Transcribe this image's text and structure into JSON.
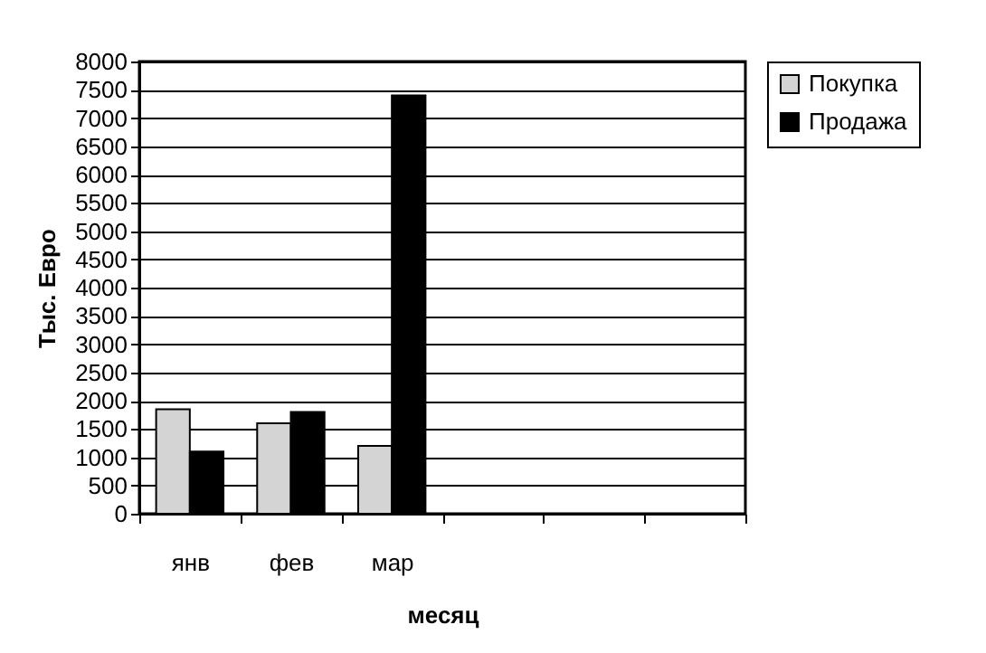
{
  "chart_data": {
    "type": "bar",
    "xlabel": "месяц",
    "ylabel": "Тыс. Евро",
    "categories": [
      "янв",
      "фев",
      "мар",
      null,
      null,
      null
    ],
    "series": [
      {
        "name": "Покупка",
        "color": "#d4d4d4",
        "values": [
          1850,
          1600,
          1200,
          null,
          null,
          null
        ]
      },
      {
        "name": "Продажа",
        "color": "#000000",
        "values": [
          1100,
          1800,
          7400,
          null,
          null,
          null
        ]
      }
    ],
    "ylim": [
      0,
      8000
    ],
    "yticks": [
      0,
      500,
      1000,
      1500,
      2000,
      2500,
      3000,
      3500,
      4000,
      4500,
      5000,
      5500,
      6000,
      6500,
      7000,
      7500,
      8000
    ],
    "grid": "y",
    "legend": "right"
  }
}
